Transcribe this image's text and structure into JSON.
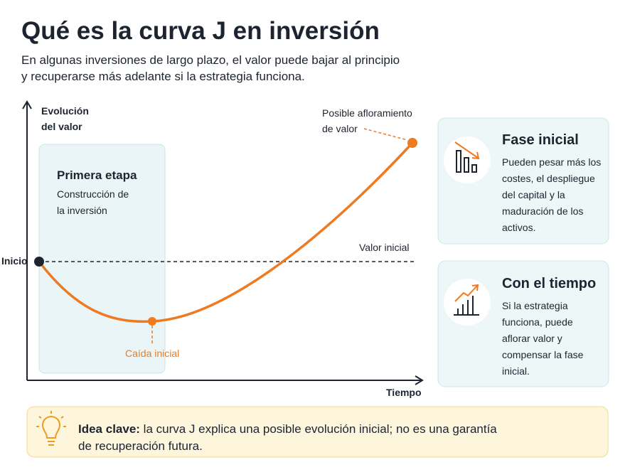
{
  "header": {
    "title": "Qué es la curva J en inversión",
    "subtitle": [
      "En algunas inversiones de largo plazo, el valor puede bajar al principio",
      "y recuperarse más adelante si la estrategia funciona."
    ]
  },
  "diagram": {
    "y_axis_label": [
      "Evolución",
      "del valor"
    ],
    "x_axis_label": "Tiempo",
    "start_label": "Inicio",
    "baseline_label": "Valor inicial",
    "stage": {
      "title": "Primera etapa",
      "text": [
        "Construcción de",
        "la inversión"
      ]
    },
    "low_point_label": "Caída inicial",
    "end_point_label": [
      "Posible afloramiento",
      "de valor"
    ]
  },
  "cards": [
    {
      "title": "Fase inicial",
      "text": [
        "Pueden pesar más los",
        "costes, el despliegue",
        "del capital y la",
        "maduración de los",
        "activos."
      ]
    },
    {
      "title": "Con el tiempo",
      "text": [
        "Si la estrategia",
        "funciona, puede",
        "aflorar valor y",
        "compensar la fase",
        "inicial."
      ]
    }
  ],
  "footer": {
    "label": "Idea clave:",
    "text": [
      " la curva J explica una posible evolución inicial; no es una garantía",
      "de recuperación futura."
    ]
  }
}
